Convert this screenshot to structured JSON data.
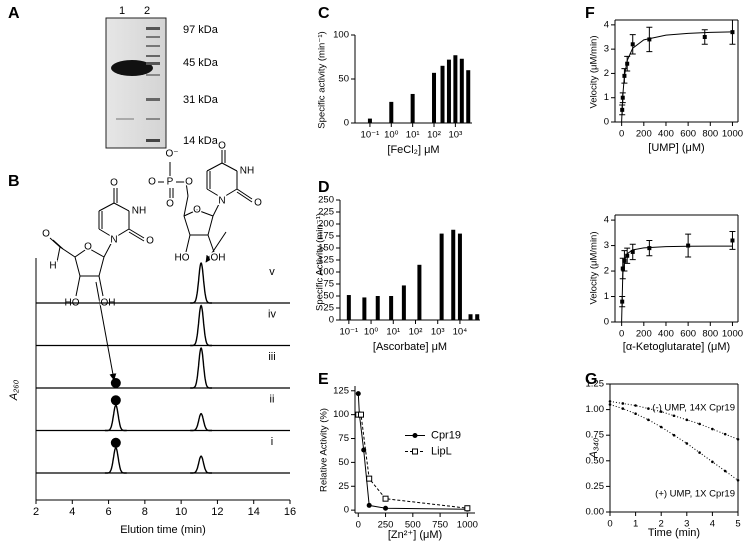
{
  "gel": {
    "panel_label": "A",
    "lanes": [
      "1",
      "2"
    ],
    "markers": [
      "97 kDa",
      "45 kDa",
      "31 kDa",
      "14 kDa"
    ]
  },
  "structures": [
    {
      "atoms": [
        "O",
        "NH",
        "O",
        "N",
        "O",
        "O",
        "H",
        "HO",
        "OH"
      ]
    },
    {
      "atoms": [
        "O",
        "NH",
        "O",
        "N",
        "O",
        "P",
        "O⁻",
        "O",
        "O",
        "O",
        "HO",
        "OH"
      ]
    }
  ],
  "chart_data": [
    {
      "type": "chromatogram",
      "panel_label": "B",
      "x_label": "Elution time (min)",
      "y_label": "A₂₆₀",
      "color": "#000000",
      "xlim": [
        2,
        16
      ],
      "xticks": [
        2,
        4,
        6,
        8,
        10,
        12,
        14,
        16
      ],
      "series": [
        {
          "name": "v",
          "peaks_x": [
            11.1
          ],
          "peaks_height": [
            0.95
          ]
        },
        {
          "name": "iv",
          "peaks_x": [
            11.1
          ],
          "peaks_height": [
            0.95
          ]
        },
        {
          "name": "iii",
          "peaks_x": [
            11.1
          ],
          "peaks_height": [
            0.95
          ],
          "dots_x": [
            6.4
          ]
        },
        {
          "name": "ii",
          "peaks_x": [
            6.4,
            11.1
          ],
          "peaks_height": [
            0.6,
            0.4
          ],
          "dots_x": [
            6.4
          ]
        },
        {
          "name": "i",
          "peaks_x": [
            6.4,
            11.1
          ],
          "peaks_height": [
            0.6,
            0.4
          ],
          "dots_x": [
            6.4
          ]
        }
      ]
    },
    {
      "type": "bar",
      "panel_label": "C",
      "x_label": "[FeCl₂] μM",
      "y_label": "Specific activity (min⁻¹)",
      "color": "#000000",
      "xscale": "log",
      "xlim": [
        0.02,
        6000
      ],
      "ylim": [
        0,
        100
      ],
      "yticks": [
        0,
        50,
        100
      ],
      "xticks": [
        {
          "value": 0.1,
          "label": "10⁻¹"
        },
        {
          "value": 1,
          "label": "10⁰"
        },
        {
          "value": 10,
          "label": "10¹"
        },
        {
          "value": 100,
          "label": "10²"
        },
        {
          "value": 1000,
          "label": "10³"
        }
      ],
      "x": [
        0.1,
        1,
        10,
        100,
        250,
        500,
        1000,
        2000,
        4000
      ],
      "values": [
        5,
        24,
        33,
        57,
        65,
        72,
        77,
        73,
        60
      ]
    },
    {
      "type": "bar",
      "panel_label": "D",
      "x_label": "[Ascorbate] μM",
      "y_label": "Specific Activity (min⁻¹)",
      "color": "#000000",
      "xscale": "log",
      "xlim": [
        0.04,
        80000
      ],
      "ylim": [
        0,
        250
      ],
      "yticks": [
        0,
        25,
        50,
        75,
        100,
        125,
        150,
        175,
        200,
        225,
        250
      ],
      "xticks": [
        {
          "value": 0.1,
          "label": "10⁻¹"
        },
        {
          "value": 1,
          "label": "10⁰"
        },
        {
          "value": 10,
          "label": "10¹"
        },
        {
          "value": 100,
          "label": "10²"
        },
        {
          "value": 1000,
          "label": "10³"
        },
        {
          "value": 10000,
          "label": "10⁴"
        }
      ],
      "x": [
        0.1,
        0.5,
        2,
        8,
        30,
        150,
        1500,
        5000,
        10000,
        30000,
        60000
      ],
      "values": [
        52,
        47,
        50,
        50,
        72,
        115,
        180,
        188,
        180,
        12,
        12
      ]
    },
    {
      "type": "line",
      "panel_label": "E",
      "x_label": "[Zn²⁺] (μM)",
      "y_label": "Relative Activity (%)",
      "color": "#000000",
      "legend": "center right",
      "xlim": [
        -30,
        1070
      ],
      "ylim": [
        -3,
        130
      ],
      "xticks": [
        0,
        250,
        500,
        750,
        1000
      ],
      "yticks": [
        0,
        25,
        50,
        75,
        100,
        125
      ],
      "series": [
        {
          "name": "Cpr19",
          "marker": "circle",
          "dash": false,
          "x": [
            0,
            10,
            50,
            100,
            250,
            1000
          ],
          "values": [
            122,
            100,
            63,
            5,
            2,
            1
          ]
        },
        {
          "name": "LipL",
          "marker": "square",
          "dash": true,
          "x": [
            0,
            25,
            100,
            250,
            1000
          ],
          "values": [
            100,
            100,
            33,
            12,
            2
          ]
        }
      ]
    },
    {
      "type": "scatter",
      "panel_label": "F",
      "x_label": "[UMP] (μM)",
      "y_label": "Velocity (μM/min)",
      "color": "#000000",
      "frame": true,
      "xlim": [
        -60,
        1050
      ],
      "ylim": [
        0,
        4.2
      ],
      "xticks": [
        0,
        200,
        400,
        600,
        800,
        1000
      ],
      "yticks": [
        0,
        1,
        2,
        3,
        4
      ],
      "x": [
        5,
        10,
        25,
        50,
        100,
        250,
        750,
        1000
      ],
      "values": [
        0.5,
        1.0,
        1.9,
        2.4,
        3.2,
        3.4,
        3.5,
        3.7
      ],
      "errors": [
        0.2,
        0.2,
        0.3,
        0.3,
        0.4,
        0.5,
        0.3,
        0.5
      ],
      "fit": {
        "x": [
          0,
          10,
          25,
          50,
          100,
          200,
          400,
          600,
          800,
          1000
        ],
        "values": [
          0,
          1.09,
          1.9,
          2.53,
          3.04,
          3.38,
          3.58,
          3.65,
          3.69,
          3.71
        ]
      }
    },
    {
      "type": "scatter",
      "x_label": "[α-Ketoglutarate] (μM)",
      "y_label": "Velocity (μM/min)",
      "color": "#000000",
      "frame": true,
      "xlim": [
        -60,
        1050
      ],
      "ylim": [
        0,
        4.2
      ],
      "xticks": [
        0,
        200,
        400,
        600,
        800,
        1000
      ],
      "yticks": [
        0,
        1,
        2,
        3,
        4
      ],
      "x": [
        5,
        10,
        25,
        50,
        100,
        250,
        600,
        1000
      ],
      "values": [
        0.8,
        2.1,
        2.4,
        2.6,
        2.75,
        2.9,
        3.0,
        3.2
      ],
      "errors": [
        0.2,
        0.4,
        0.4,
        0.3,
        0.3,
        0.3,
        0.45,
        0.35
      ],
      "fit": {
        "x": [
          0,
          10,
          25,
          50,
          100,
          200,
          400,
          600,
          800,
          1000
        ],
        "values": [
          0,
          1.88,
          2.42,
          2.68,
          2.83,
          2.91,
          2.96,
          2.97,
          2.98,
          2.98
        ]
      }
    },
    {
      "type": "line",
      "panel_label": "G",
      "x_label": "Time  (min)",
      "y_label": "A₃₄₀",
      "color": "#000000",
      "frame": true,
      "xlim": [
        0,
        5
      ],
      "ylim": [
        0,
        1.25
      ],
      "xticks": [
        0,
        1,
        2,
        3,
        4,
        5
      ],
      "yticks": [
        {
          "value": 0,
          "label": "0.00"
        },
        0.25,
        {
          "value": 0.5,
          "label": "0.50"
        },
        0.75,
        {
          "value": 1,
          "label": "1.00"
        },
        1.25
      ],
      "series": [
        {
          "name": "(-) UMP, 14X Cpr19",
          "x": [
            0,
            0.5,
            1,
            1.5,
            2,
            2.5,
            3,
            3.5,
            4,
            4.5,
            5
          ],
          "values": [
            1.08,
            1.06,
            1.04,
            1.01,
            0.98,
            0.94,
            0.9,
            0.86,
            0.81,
            0.76,
            0.71
          ]
        },
        {
          "name": "(+) UMP, 1X Cpr19",
          "x": [
            0,
            0.5,
            1,
            1.5,
            2,
            2.5,
            3,
            3.5,
            4,
            4.5,
            5
          ],
          "values": [
            1.05,
            1.01,
            0.96,
            0.9,
            0.83,
            0.75,
            0.67,
            0.58,
            0.49,
            0.4,
            0.31
          ]
        }
      ]
    }
  ]
}
